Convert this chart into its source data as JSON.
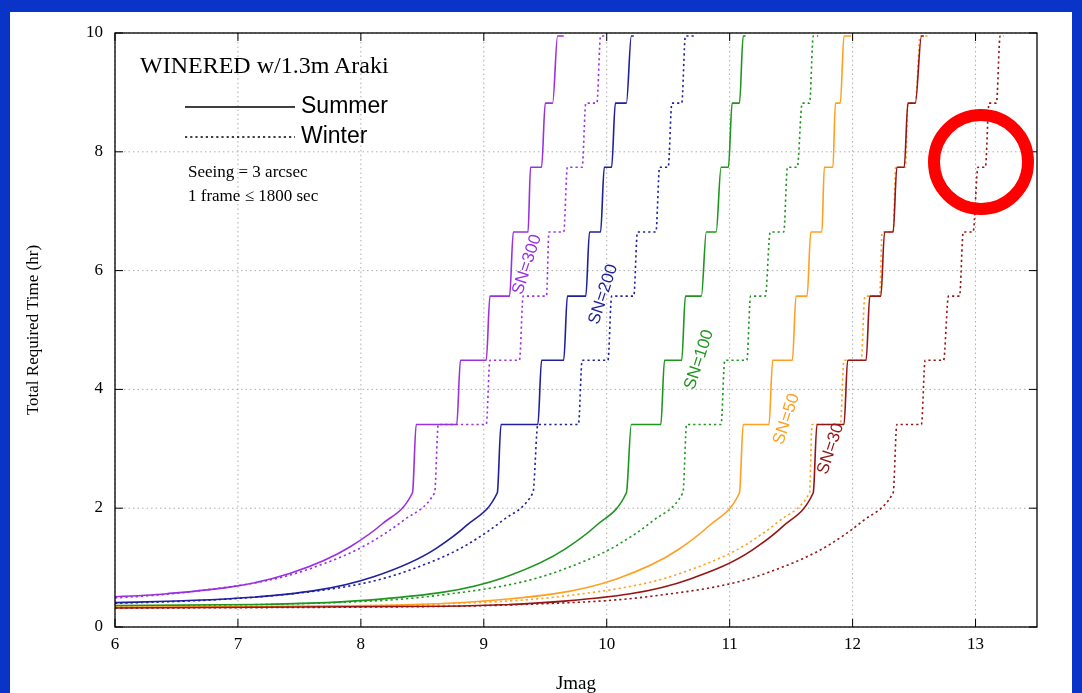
{
  "chart_data": {
    "type": "line",
    "title": "WINERED w/1.3m Araki",
    "xlabel": "Jmag",
    "ylabel": "Total Required Time (hr)",
    "annotations": [
      "Summer",
      "Winter",
      "Seeing = 3 arcsec",
      "1 frame ≤ 1800 sec"
    ],
    "grid": true,
    "xlim": [
      6,
      13.5
    ],
    "xticks": [
      6,
      7,
      8,
      9,
      10,
      11,
      12,
      13
    ],
    "ylim": [
      0,
      10
    ],
    "yticks": [
      0,
      2,
      4,
      6,
      8,
      10
    ],
    "series": [
      {
        "name": "SN=300",
        "color": "#9a30e0",
        "line_style": "solid",
        "x": [
          6,
          6.42,
          7.42,
          7.92,
          8.17,
          8.42,
          8.45,
          8.78,
          8.81,
          9.02,
          9.05,
          9.21,
          9.24,
          9.36,
          9.38,
          9.47,
          9.5,
          9.56,
          9.6,
          9.65
        ],
        "values": [
          0.51,
          0.56,
          0.9,
          1.36,
          1.73,
          2.26,
          3.41,
          3.41,
          4.49,
          4.49,
          5.57,
          5.57,
          6.65,
          6.65,
          7.74,
          7.74,
          8.82,
          8.82,
          9.95,
          9.95
        ]
      },
      {
        "color": "#9a30e0",
        "line_style": "dotted",
        "x": [
          6,
          6.6,
          7.6,
          8.1,
          8.35,
          8.6,
          8.63,
          9.02,
          9.05,
          9.29,
          9.32,
          9.51,
          9.53,
          9.65,
          9.68,
          9.8,
          9.83,
          9.92,
          9.95,
          10.0
        ],
        "values": [
          0.49,
          0.59,
          0.99,
          1.45,
          1.8,
          2.26,
          3.41,
          3.41,
          4.49,
          4.49,
          5.57,
          5.57,
          6.65,
          6.65,
          7.74,
          7.74,
          8.82,
          8.82,
          9.95,
          9.95
        ]
      },
      {
        "name": "SN=200",
        "color": "#1f1f9e",
        "line_style": "solid",
        "x": [
          6,
          7.11,
          8.11,
          8.61,
          8.86,
          9.11,
          9.14,
          9.44,
          9.47,
          9.65,
          9.68,
          9.83,
          9.86,
          9.95,
          9.98,
          10.04,
          10.07,
          10.16,
          10.2,
          10.22
        ],
        "values": [
          0.41,
          0.5,
          0.85,
          1.32,
          1.71,
          2.26,
          3.41,
          3.41,
          4.49,
          4.49,
          5.57,
          5.57,
          6.65,
          6.65,
          7.74,
          7.74,
          8.82,
          8.82,
          9.95,
          9.95
        ]
      },
      {
        "color": "#1f1f9e",
        "line_style": "dotted",
        "x": [
          6,
          7.4,
          8.4,
          8.9,
          9.15,
          9.4,
          9.44,
          9.77,
          9.8,
          10.01,
          10.04,
          10.22,
          10.25,
          10.4,
          10.43,
          10.5,
          10.53,
          10.61,
          10.64,
          10.71
        ],
        "values": [
          0.4,
          0.55,
          0.96,
          1.43,
          1.79,
          2.26,
          3.41,
          3.41,
          4.49,
          4.49,
          5.57,
          5.57,
          6.65,
          6.65,
          7.74,
          7.74,
          8.82,
          8.82,
          9.95,
          9.95
        ]
      },
      {
        "name": "SN=100",
        "color": "#1e961e",
        "line_style": "solid",
        "x": [
          6,
          7.16,
          8.16,
          9.16,
          9.66,
          9.91,
          10.16,
          10.2,
          10.44,
          10.47,
          10.61,
          10.64,
          10.77,
          10.81,
          10.89,
          10.93,
          10.99,
          11.02,
          11.08,
          11.11,
          11.13
        ],
        "values": [
          0.36,
          0.38,
          0.47,
          0.83,
          1.31,
          1.7,
          2.26,
          3.41,
          3.41,
          4.49,
          4.49,
          5.57,
          5.57,
          6.65,
          6.65,
          7.74,
          7.74,
          8.82,
          8.82,
          9.95,
          9.95
        ]
      },
      {
        "color": "#1e961e",
        "line_style": "dotted",
        "x": [
          6,
          7.62,
          8.62,
          9.62,
          10.12,
          10.37,
          10.62,
          10.65,
          10.93,
          10.96,
          11.14,
          11.17,
          11.29,
          11.33,
          11.44,
          11.47,
          11.55,
          11.59,
          11.65,
          11.68,
          11.72
        ],
        "values": [
          0.35,
          0.4,
          0.53,
          0.95,
          1.42,
          1.78,
          2.26,
          3.41,
          3.41,
          4.49,
          4.49,
          5.57,
          5.57,
          6.65,
          6.65,
          7.74,
          7.74,
          8.82,
          8.82,
          9.95,
          9.95
        ]
      },
      {
        "name": "SN=50",
        "color": "#ffa020",
        "line_style": "solid",
        "x": [
          6,
          8.08,
          9.08,
          10.08,
          10.58,
          10.83,
          11.08,
          11.11,
          11.32,
          11.35,
          11.51,
          11.54,
          11.63,
          11.66,
          11.75,
          11.77,
          11.84,
          11.86,
          11.9,
          11.93,
          11.99
        ],
        "values": [
          0.33,
          0.36,
          0.45,
          0.81,
          1.3,
          1.7,
          2.26,
          3.41,
          3.41,
          4.49,
          4.49,
          5.57,
          5.57,
          6.65,
          6.65,
          7.74,
          7.74,
          8.82,
          8.82,
          9.95,
          9.95
        ]
      },
      {
        "color": "#ffa020",
        "line_style": "dotted",
        "x": [
          6,
          7.65,
          8.65,
          9.65,
          10.65,
          11.15,
          11.4,
          11.65,
          11.67,
          11.9,
          11.93,
          12.07,
          12.1,
          12.22,
          12.24,
          12.33,
          12.35,
          12.43,
          12.45,
          12.51,
          12.55,
          12.63
        ],
        "values": [
          0.33,
          0.35,
          0.39,
          0.52,
          0.94,
          1.41,
          1.78,
          2.26,
          3.41,
          3.41,
          4.49,
          4.49,
          5.57,
          5.57,
          6.65,
          6.65,
          7.74,
          7.74,
          8.82,
          8.82,
          9.95,
          9.95
        ]
      },
      {
        "name": "SN=30",
        "color": "#951515",
        "line_style": "solid",
        "x": [
          6,
          8.68,
          9.68,
          10.68,
          11.18,
          11.43,
          11.68,
          11.71,
          11.93,
          11.96,
          12.11,
          12.14,
          12.23,
          12.26,
          12.33,
          12.36,
          12.42,
          12.45,
          12.51,
          12.56,
          12.58
        ],
        "values": [
          0.32,
          0.35,
          0.44,
          0.81,
          1.29,
          1.69,
          2.26,
          3.41,
          3.41,
          4.49,
          4.49,
          5.57,
          5.57,
          6.65,
          6.65,
          7.74,
          7.74,
          8.82,
          8.82,
          9.95,
          9.95
        ]
      },
      {
        "color": "#951515",
        "line_style": "dotted",
        "x": [
          6,
          8.33,
          9.33,
          10.33,
          11.33,
          11.83,
          12.08,
          12.33,
          12.36,
          12.56,
          12.59,
          12.74,
          12.78,
          12.87,
          12.9,
          12.98,
          13.02,
          13.08,
          13.11,
          13.17,
          13.2,
          13.23
        ],
        "values": [
          0.32,
          0.34,
          0.38,
          0.51,
          0.93,
          1.41,
          1.78,
          2.26,
          3.41,
          3.41,
          4.49,
          4.49,
          5.57,
          5.57,
          6.65,
          6.65,
          7.74,
          7.74,
          8.82,
          8.82,
          9.95,
          9.95
        ]
      }
    ]
  }
}
